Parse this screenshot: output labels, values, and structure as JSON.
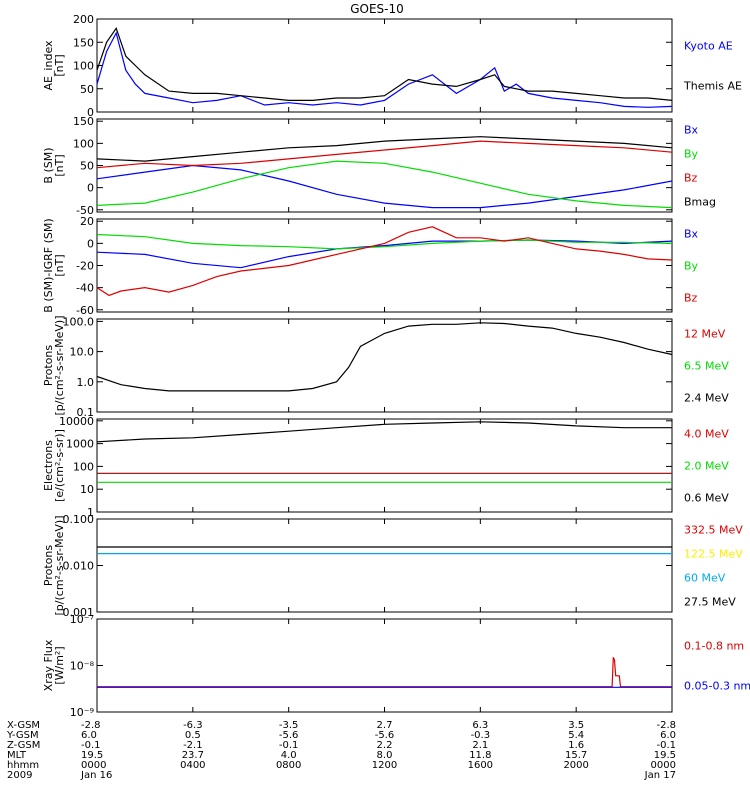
{
  "title": "GOES-10",
  "colors": {
    "black": "#000000",
    "blue": "#0000ff",
    "green": "#00dd00",
    "red": "#dd0000",
    "darkred": "#990000",
    "yellow": "#ffee00",
    "cyan": "#00aaee"
  },
  "chart_data": [
    {
      "type": "line",
      "id": "ae",
      "ylabel": [
        "AE_index",
        "[nT]"
      ],
      "ylim": [
        0,
        200
      ],
      "yscale": "linear",
      "yticks": [
        0,
        50,
        100,
        150,
        200
      ],
      "legend": [
        {
          "name": "Kyoto AE",
          "color": "#0000ff"
        },
        {
          "name": "Themis AE",
          "color": "#000000"
        }
      ],
      "series": [
        {
          "name": "Kyoto AE",
          "color": "#0000ff",
          "x": [
            0,
            0.4,
            0.8,
            1.2,
            1.6,
            2,
            3,
            4,
            5,
            6,
            7,
            8,
            9,
            10,
            11,
            12,
            13,
            14,
            15,
            16,
            16.6,
            17,
            17.5,
            18,
            19,
            20,
            21,
            22,
            23,
            24
          ],
          "y": [
            60,
            130,
            170,
            90,
            60,
            40,
            30,
            20,
            25,
            35,
            15,
            20,
            15,
            20,
            15,
            25,
            60,
            80,
            40,
            70,
            95,
            45,
            60,
            40,
            30,
            25,
            20,
            12,
            10,
            12
          ]
        },
        {
          "name": "Themis AE",
          "color": "#000000",
          "x": [
            0,
            0.4,
            0.8,
            1.2,
            1.6,
            2,
            3,
            4,
            5,
            6,
            7,
            8,
            9,
            10,
            11,
            12,
            13,
            14,
            15,
            16,
            16.6,
            17,
            17.5,
            18,
            19,
            20,
            21,
            22,
            23,
            24
          ],
          "y": [
            90,
            150,
            180,
            120,
            100,
            80,
            45,
            40,
            40,
            35,
            30,
            25,
            25,
            30,
            30,
            35,
            70,
            60,
            55,
            70,
            80,
            55,
            50,
            45,
            45,
            40,
            35,
            30,
            30,
            25
          ]
        }
      ]
    },
    {
      "type": "line",
      "id": "bgsm",
      "ylabel": [
        "B (SM)",
        "[nT]"
      ],
      "ylim": [
        -55,
        155
      ],
      "yscale": "linear",
      "yticks": [
        -50,
        0,
        50,
        100,
        150
      ],
      "legend": [
        {
          "name": "Bx",
          "color": "#0000ff"
        },
        {
          "name": "By",
          "color": "#00dd00"
        },
        {
          "name": "Bz",
          "color": "#dd0000"
        },
        {
          "name": "Bmag",
          "color": "#000000"
        }
      ],
      "series": [
        {
          "name": "Bx",
          "color": "#0000ff",
          "x": [
            0,
            2,
            4,
            6,
            8,
            10,
            12,
            14,
            16,
            18,
            20,
            22,
            24
          ],
          "y": [
            20,
            35,
            50,
            40,
            15,
            -15,
            -35,
            -45,
            -45,
            -35,
            -20,
            -5,
            15
          ]
        },
        {
          "name": "By",
          "color": "#00dd00",
          "x": [
            0,
            2,
            4,
            6,
            8,
            10,
            12,
            14,
            16,
            18,
            20,
            22,
            24
          ],
          "y": [
            -40,
            -35,
            -10,
            20,
            45,
            60,
            55,
            35,
            10,
            -15,
            -30,
            -40,
            -45
          ]
        },
        {
          "name": "Bz",
          "color": "#dd0000",
          "x": [
            0,
            2,
            4,
            6,
            8,
            10,
            12,
            14,
            16,
            18,
            20,
            22,
            24
          ],
          "y": [
            45,
            55,
            50,
            55,
            65,
            75,
            85,
            95,
            105,
            100,
            95,
            90,
            80
          ]
        },
        {
          "name": "Bmag",
          "color": "#000000",
          "x": [
            0,
            2,
            4,
            6,
            8,
            10,
            12,
            14,
            16,
            18,
            20,
            22,
            24
          ],
          "y": [
            65,
            60,
            70,
            80,
            90,
            95,
            105,
            110,
            115,
            110,
            105,
            100,
            90
          ]
        }
      ]
    },
    {
      "type": "line",
      "id": "bdiff",
      "ylabel": [
        "B (SM)-IGRF (SM)",
        "[nT]"
      ],
      "ylim": [
        -62,
        22
      ],
      "yscale": "linear",
      "yticks": [
        -60,
        -40,
        -20,
        0,
        20
      ],
      "legend": [
        {
          "name": "Bx",
          "color": "#0000ff"
        },
        {
          "name": "By",
          "color": "#00dd00"
        },
        {
          "name": "Bz",
          "color": "#dd0000"
        }
      ],
      "series": [
        {
          "name": "Bx",
          "color": "#0000ff",
          "x": [
            0,
            2,
            4,
            6,
            8,
            10,
            12,
            14,
            16,
            18,
            20,
            22,
            24
          ],
          "y": [
            -8,
            -10,
            -18,
            -22,
            -12,
            -5,
            -2,
            2,
            2,
            3,
            2,
            0,
            2
          ]
        },
        {
          "name": "By",
          "color": "#00dd00",
          "x": [
            0,
            2,
            4,
            6,
            8,
            10,
            12,
            14,
            16,
            18,
            20,
            22,
            24
          ],
          "y": [
            8,
            6,
            0,
            -2,
            -3,
            -5,
            -3,
            0,
            2,
            3,
            1,
            1,
            0
          ]
        },
        {
          "name": "Bz",
          "color": "#dd0000",
          "x": [
            0,
            0.5,
            1,
            2,
            3,
            4,
            5,
            6,
            8,
            10,
            12,
            13,
            14,
            15,
            16,
            17,
            18,
            19,
            20,
            21,
            22,
            23,
            24
          ],
          "y": [
            -40,
            -47,
            -43,
            -40,
            -44,
            -38,
            -30,
            -25,
            -20,
            -10,
            0,
            10,
            15,
            5,
            5,
            2,
            5,
            0,
            -5,
            -7,
            -10,
            -14,
            -15
          ]
        }
      ]
    },
    {
      "type": "line",
      "id": "protons1",
      "ylabel": [
        "Protons",
        "[p/(cm²-s-sr-MeV)]"
      ],
      "ylim": [
        0.1,
        120
      ],
      "yscale": "log",
      "yticks": [
        0.1,
        1.0,
        10.0,
        100.0
      ],
      "yticklabels": [
        "0.1",
        "1.0",
        "10.0",
        "100.0"
      ],
      "legend": [
        {
          "name": "12 MeV",
          "color": "#dd0000"
        },
        {
          "name": "6.5 MeV",
          "color": "#00dd00"
        },
        {
          "name": "2.4 MeV",
          "color": "#000000"
        }
      ],
      "series": [
        {
          "name": "2.4 MeV",
          "color": "#000000",
          "x": [
            0,
            1,
            2,
            3,
            4,
            5,
            6,
            7,
            8,
            9,
            10,
            10.5,
            11,
            12,
            13,
            14,
            15,
            16,
            17,
            18,
            19,
            20,
            21,
            22,
            23,
            24
          ],
          "y": [
            1.5,
            0.8,
            0.6,
            0.5,
            0.5,
            0.5,
            0.5,
            0.5,
            0.5,
            0.6,
            1,
            3,
            15,
            40,
            70,
            80,
            80,
            90,
            85,
            70,
            60,
            40,
            30,
            20,
            12,
            8
          ]
        }
      ]
    },
    {
      "type": "line",
      "id": "electrons",
      "ylabel": [
        "Electrons",
        "[e/(cm²-s-sr)]"
      ],
      "ylim": [
        1,
        12000
      ],
      "yscale": "log",
      "yticks": [
        1,
        10,
        100,
        1000,
        10000
      ],
      "yticklabels": [
        "1",
        "10",
        "100",
        "1000",
        "10000"
      ],
      "legend": [
        {
          "name": "4.0 MeV",
          "color": "#dd0000"
        },
        {
          "name": "2.0 MeV",
          "color": "#00dd00"
        },
        {
          "name": "0.6 MeV",
          "color": "#000000"
        }
      ],
      "series": [
        {
          "name": "0.6 MeV",
          "color": "#000000",
          "x": [
            0,
            2,
            4,
            6,
            8,
            10,
            12,
            14,
            16,
            18,
            20,
            22,
            24
          ],
          "y": [
            1200,
            1600,
            1800,
            2500,
            3500,
            5000,
            7000,
            8000,
            9000,
            8000,
            6000,
            5000,
            5000
          ]
        },
        {
          "name": "4.0 MeV",
          "color": "#990000",
          "x": [
            0,
            24
          ],
          "y": [
            50,
            50
          ]
        },
        {
          "name": "2.0 MeV",
          "color": "#00dd00",
          "x": [
            0,
            24
          ],
          "y": [
            20,
            20
          ]
        }
      ]
    },
    {
      "type": "line",
      "id": "protons2",
      "ylabel": [
        "Protons",
        "[p/(cm²-s-sr-MeV)]"
      ],
      "ylim": [
        0.001,
        0.1
      ],
      "yscale": "log",
      "yticks": [
        0.001,
        0.01,
        0.1
      ],
      "yticklabels": [
        "0.001",
        "0.010",
        "0.100"
      ],
      "legend": [
        {
          "name": "332.5 MeV",
          "color": "#dd0000"
        },
        {
          "name": "122.5 MeV",
          "color": "#ffee00"
        },
        {
          "name": "60 MeV",
          "color": "#00aaee"
        },
        {
          "name": "27.5 MeV",
          "color": "#000000"
        }
      ],
      "series": [
        {
          "name": "27.5 MeV",
          "color": "#000000",
          "x": [
            0,
            24
          ],
          "y": [
            0.025,
            0.025
          ]
        },
        {
          "name": "60 MeV",
          "color": "#00aaee",
          "x": [
            0,
            24
          ],
          "y": [
            0.018,
            0.018
          ]
        }
      ]
    },
    {
      "type": "line",
      "id": "xray",
      "ylabel": [
        "Xray Flux",
        "[W/m²]"
      ],
      "ylim": [
        1e-09,
        1e-07
      ],
      "yscale": "log",
      "yticks": [
        1e-09,
        1e-08,
        1e-07
      ],
      "yticklabels": [
        "10⁻⁹",
        "10⁻⁸",
        "10⁻⁷"
      ],
      "legend": [
        {
          "name": "0.1-0.8 nm",
          "color": "#dd0000"
        },
        {
          "name": "0.05-0.3 nm",
          "color": "#0000ff"
        }
      ],
      "series": [
        {
          "name": "0.1-0.8 nm",
          "color": "#dd0000",
          "x": [
            0,
            21.4,
            21.5,
            21.55,
            21.6,
            21.65,
            21.8,
            21.85,
            24
          ],
          "y": [
            3.5e-09,
            3.5e-09,
            3.5e-09,
            1.5e-08,
            1.3e-08,
            6e-09,
            6e-09,
            3.5e-09,
            3.5e-09
          ]
        },
        {
          "name": "0.05-0.3 nm",
          "color": "#0000ff",
          "x": [
            0,
            24
          ],
          "y": [
            3.4e-09,
            3.4e-09
          ]
        }
      ]
    }
  ],
  "time_axis": {
    "xlim": [
      0,
      24
    ],
    "row_labels": [
      "X-GSM",
      "Y-GSM",
      "Z-GSM",
      "MLT",
      "hhmm",
      "2009"
    ],
    "columns": [
      {
        "x": 0,
        "values": [
          "-2.8",
          "6.0",
          "-0.1",
          "19.5",
          "0000",
          "Jan 16"
        ]
      },
      {
        "x": 4,
        "values": [
          "-6.3",
          "0.5",
          "-2.1",
          "23.7",
          "0400",
          ""
        ]
      },
      {
        "x": 8,
        "values": [
          "-3.5",
          "-5.6",
          "-0.1",
          "4.0",
          "0800",
          ""
        ]
      },
      {
        "x": 12,
        "values": [
          "2.7",
          "-5.6",
          "2.2",
          "8.0",
          "1200",
          ""
        ]
      },
      {
        "x": 16,
        "values": [
          "6.3",
          "-0.3",
          "2.1",
          "11.8",
          "1600",
          ""
        ]
      },
      {
        "x": 20,
        "values": [
          "3.5",
          "5.4",
          "1.6",
          "15.7",
          "2000",
          ""
        ]
      },
      {
        "x": 24,
        "values": [
          "-2.8",
          "6.0",
          "-0.1",
          "19.5",
          "0000",
          "Jan 17"
        ]
      }
    ]
  }
}
